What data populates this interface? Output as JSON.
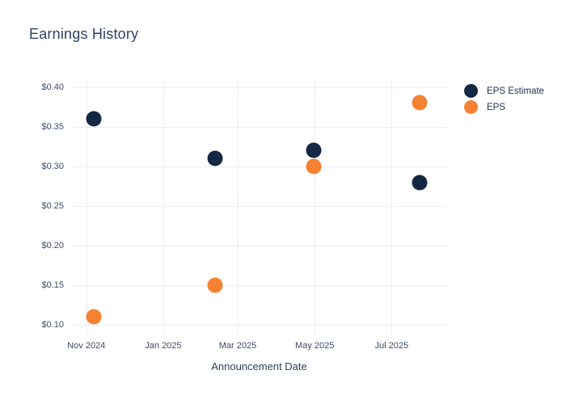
{
  "chart": {
    "title": "Earnings History",
    "x_axis_title": "Announcement Date"
  },
  "chart_data": {
    "type": "scatter",
    "title": "Earnings History",
    "xlabel": "Announcement Date",
    "ylabel": "",
    "grid": true,
    "legend_position": "right",
    "xlim": [
      "2024-10-20",
      "2025-08-14"
    ],
    "ylim": [
      0.087,
      0.408
    ],
    "x_ticks": [
      {
        "date": "2024-11-01",
        "label": "Nov 2024"
      },
      {
        "date": "2025-01-01",
        "label": "Jan 2025"
      },
      {
        "date": "2025-03-01",
        "label": "Mar 2025"
      },
      {
        "date": "2025-05-01",
        "label": "May 2025"
      },
      {
        "date": "2025-07-01",
        "label": "Jul 2025"
      }
    ],
    "y_ticks": [
      {
        "value": 0.4,
        "label": "$0.40"
      },
      {
        "value": 0.35,
        "label": "$0.35"
      },
      {
        "value": 0.3,
        "label": "$0.30"
      },
      {
        "value": 0.25,
        "label": "$0.25"
      },
      {
        "value": 0.2,
        "label": "$0.20"
      },
      {
        "value": 0.15,
        "label": "$0.15"
      },
      {
        "value": 0.1,
        "label": "$0.10"
      }
    ],
    "series": [
      {
        "name": "EPS Estimate",
        "color": "#132842",
        "points": [
          {
            "date": "2024-11-07",
            "value": 0.36
          },
          {
            "date": "2025-02-11",
            "value": 0.31
          },
          {
            "date": "2025-04-30",
            "value": 0.32
          },
          {
            "date": "2025-07-23",
            "value": 0.28
          }
        ]
      },
      {
        "name": "EPS",
        "color": "#f58232",
        "points": [
          {
            "date": "2024-11-07",
            "value": 0.11
          },
          {
            "date": "2025-02-11",
            "value": 0.15
          },
          {
            "date": "2025-04-30",
            "value": 0.3
          },
          {
            "date": "2025-07-23",
            "value": 0.38
          }
        ]
      }
    ],
    "style": {
      "grid_color": "#e9edf6",
      "tick_label_color": "#3d4b68",
      "title_color": "#2e4164"
    }
  }
}
